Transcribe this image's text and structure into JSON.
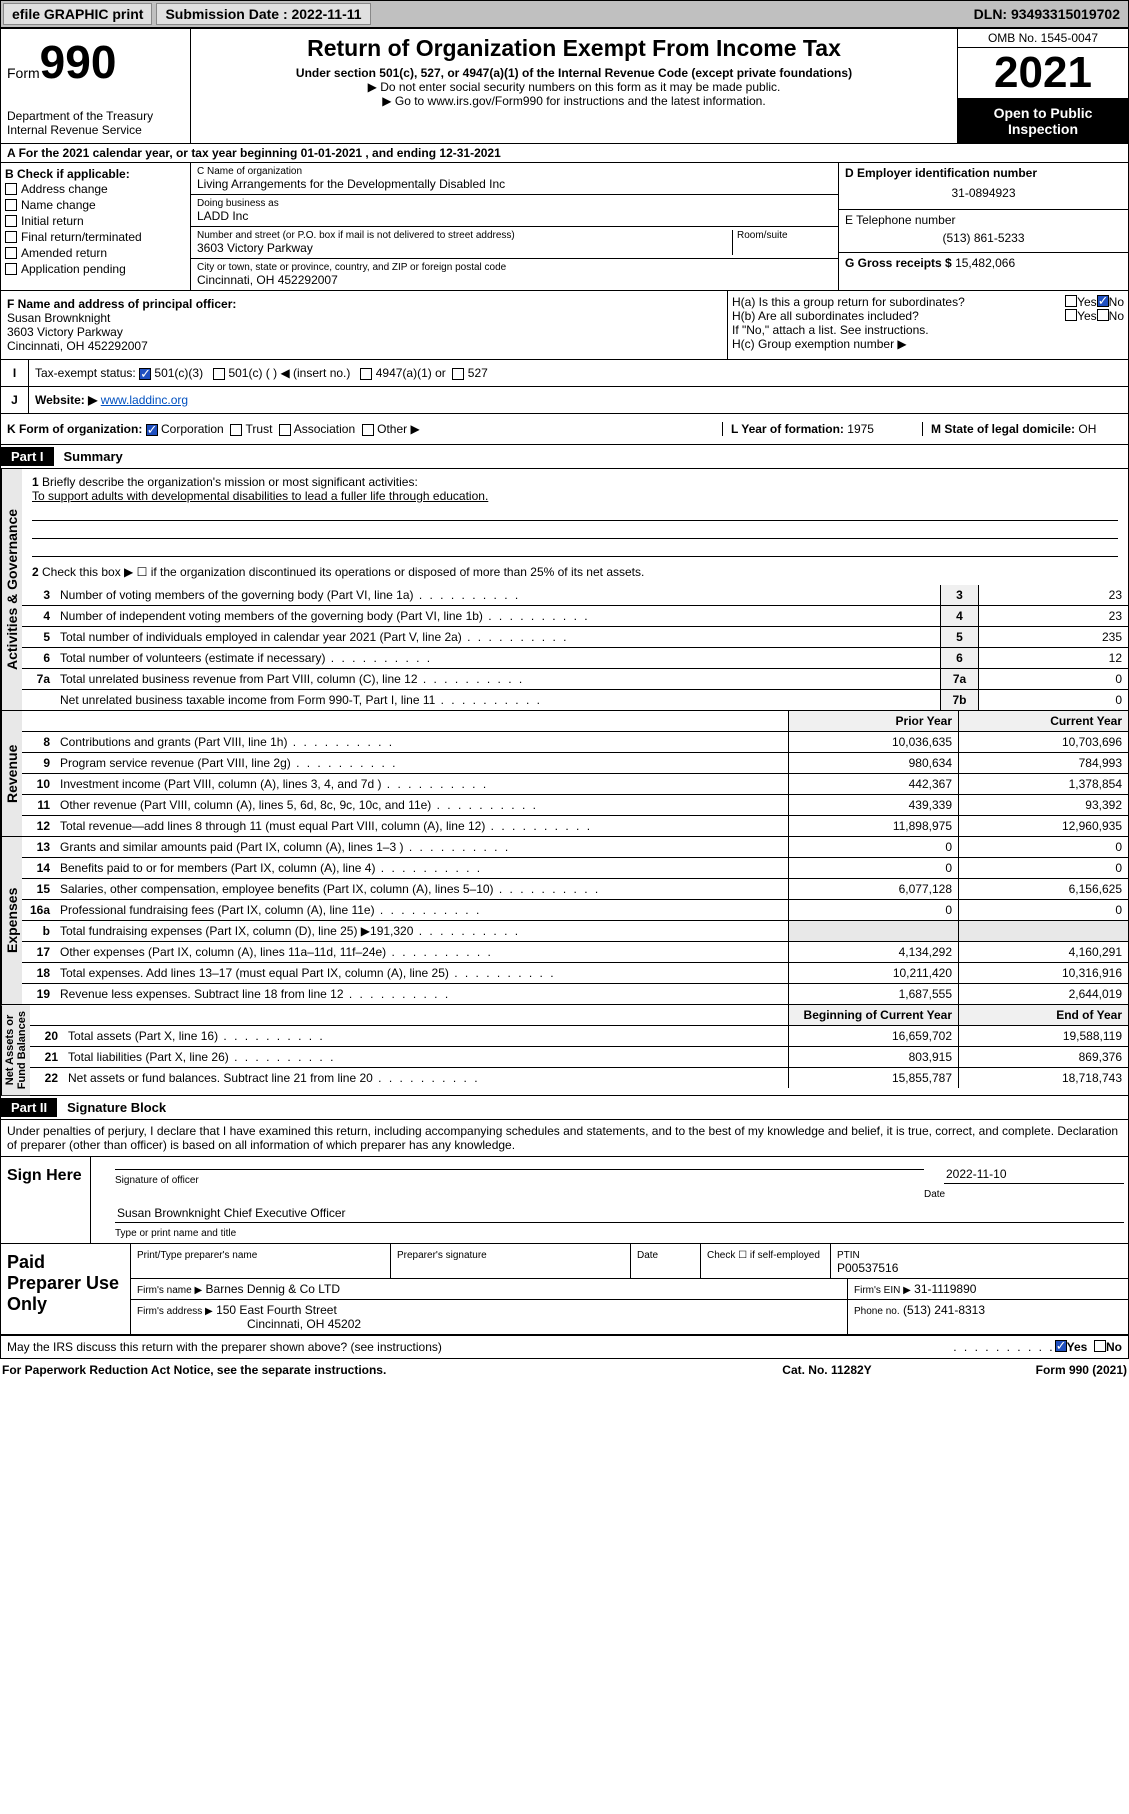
{
  "topbar": {
    "efile": "efile GRAPHIC print",
    "sub_label": "Submission Date : 2022-11-11",
    "dln": "DLN: 93493315019702"
  },
  "header": {
    "form_small": "Form",
    "form_big": "990",
    "dept": "Department of the Treasury\nInternal Revenue Service",
    "title": "Return of Organization Exempt From Income Tax",
    "sub1": "Under section 501(c), 527, or 4947(a)(1) of the Internal Revenue Code (except private foundations)",
    "sub2": "▶ Do not enter social security numbers on this form as it may be made public.",
    "sub3": "▶ Go to www.irs.gov/Form990 for instructions and the latest information.",
    "omb": "OMB No. 1545-0047",
    "year": "2021",
    "open": "Open to Public Inspection"
  },
  "a": {
    "text": "For the 2021 calendar year, or tax year beginning 01-01-2021   , and ending 12-31-2021"
  },
  "b": {
    "title": "B Check if applicable:",
    "items": [
      "Address change",
      "Name change",
      "Initial return",
      "Final return/terminated",
      "Amended return",
      "Application pending"
    ]
  },
  "c": {
    "name_label": "C Name of organization",
    "name": "Living Arrangements for the Developmentally Disabled Inc",
    "dba_label": "Doing business as",
    "dba": "LADD Inc",
    "addr_label": "Number and street (or P.O. box if mail is not delivered to street address)",
    "room": "Room/suite",
    "addr": "3603 Victory Parkway",
    "city_label": "City or town, state or province, country, and ZIP or foreign postal code",
    "city": "Cincinnati, OH  452292007"
  },
  "d": {
    "label": "D Employer identification number",
    "val": "31-0894923"
  },
  "e": {
    "label": "E Telephone number",
    "val": "(513) 861-5233"
  },
  "g": {
    "label": "G Gross receipts $",
    "val": "15,482,066"
  },
  "f": {
    "label": "F  Name and address of principal officer:",
    "name": "Susan Brownknight",
    "addr": "3603 Victory Parkway",
    "city": "Cincinnati, OH  452292007"
  },
  "h": {
    "a": "H(a)  Is this a group return for subordinates?",
    "a_no": "No",
    "a_yes": "Yes",
    "b": "H(b)  Are all subordinates included?",
    "b_note": "If \"No,\" attach a list. See instructions.",
    "c": "H(c)  Group exemption number ▶"
  },
  "i": {
    "label": "Tax-exempt status:",
    "opts": [
      "501(c)(3)",
      "501(c) (  ) ◀ (insert no.)",
      "4947(a)(1) or",
      "527"
    ]
  },
  "j": {
    "label": "Website: ▶",
    "val": "www.laddinc.org"
  },
  "k": {
    "label": "K Form of organization:",
    "opts": [
      "Corporation",
      "Trust",
      "Association",
      "Other ▶"
    ]
  },
  "l": {
    "label": "L Year of formation:",
    "val": "1975"
  },
  "m": {
    "label": "M State of legal domicile:",
    "val": "OH"
  },
  "part1": {
    "hdr": "Part I",
    "title": "Summary"
  },
  "summary": {
    "q1": "Briefly describe the organization's mission or most significant activities:",
    "mission": "To support adults with developmental disabilities to lead a fuller life through education.",
    "q2": "Check this box ▶ ☐  if the organization discontinued its operations or disposed of more than 25% of its net assets.",
    "lines": [
      {
        "n": "3",
        "d": "Number of voting members of the governing body (Part VI, line 1a)",
        "nb": "3",
        "v": "23"
      },
      {
        "n": "4",
        "d": "Number of independent voting members of the governing body (Part VI, line 1b)",
        "nb": "4",
        "v": "23"
      },
      {
        "n": "5",
        "d": "Total number of individuals employed in calendar year 2021 (Part V, line 2a)",
        "nb": "5",
        "v": "235"
      },
      {
        "n": "6",
        "d": "Total number of volunteers (estimate if necessary)",
        "nb": "6",
        "v": "12"
      },
      {
        "n": "7a",
        "d": "Total unrelated business revenue from Part VIII, column (C), line 12",
        "nb": "7a",
        "v": "0"
      },
      {
        "n": "",
        "d": "Net unrelated business taxable income from Form 990-T, Part I, line 11",
        "nb": "7b",
        "v": "0"
      }
    ]
  },
  "colhdrs": {
    "prior": "Prior Year",
    "current": "Current Year",
    "boy": "Beginning of Current Year",
    "eoy": "End of Year"
  },
  "revenue": [
    {
      "n": "8",
      "d": "Contributions and grants (Part VIII, line 1h)",
      "p": "10,036,635",
      "c": "10,703,696"
    },
    {
      "n": "9",
      "d": "Program service revenue (Part VIII, line 2g)",
      "p": "980,634",
      "c": "784,993"
    },
    {
      "n": "10",
      "d": "Investment income (Part VIII, column (A), lines 3, 4, and 7d )",
      "p": "442,367",
      "c": "1,378,854"
    },
    {
      "n": "11",
      "d": "Other revenue (Part VIII, column (A), lines 5, 6d, 8c, 9c, 10c, and 11e)",
      "p": "439,339",
      "c": "93,392"
    },
    {
      "n": "12",
      "d": "Total revenue—add lines 8 through 11 (must equal Part VIII, column (A), line 12)",
      "p": "11,898,975",
      "c": "12,960,935"
    }
  ],
  "expenses": [
    {
      "n": "13",
      "d": "Grants and similar amounts paid (Part IX, column (A), lines 1–3 )",
      "p": "0",
      "c": "0"
    },
    {
      "n": "14",
      "d": "Benefits paid to or for members (Part IX, column (A), line 4)",
      "p": "0",
      "c": "0"
    },
    {
      "n": "15",
      "d": "Salaries, other compensation, employee benefits (Part IX, column (A), lines 5–10)",
      "p": "6,077,128",
      "c": "6,156,625"
    },
    {
      "n": "16a",
      "d": "Professional fundraising fees (Part IX, column (A), line 11e)",
      "p": "0",
      "c": "0"
    },
    {
      "n": "b",
      "d": "Total fundraising expenses (Part IX, column (D), line 25) ▶191,320",
      "p": "",
      "c": "",
      "shade": true
    },
    {
      "n": "17",
      "d": "Other expenses (Part IX, column (A), lines 11a–11d, 11f–24e)",
      "p": "4,134,292",
      "c": "4,160,291"
    },
    {
      "n": "18",
      "d": "Total expenses. Add lines 13–17 (must equal Part IX, column (A), line 25)",
      "p": "10,211,420",
      "c": "10,316,916"
    },
    {
      "n": "19",
      "d": "Revenue less expenses. Subtract line 18 from line 12",
      "p": "1,687,555",
      "c": "2,644,019"
    }
  ],
  "netassets": [
    {
      "n": "20",
      "d": "Total assets (Part X, line 16)",
      "p": "16,659,702",
      "c": "19,588,119"
    },
    {
      "n": "21",
      "d": "Total liabilities (Part X, line 26)",
      "p": "803,915",
      "c": "869,376"
    },
    {
      "n": "22",
      "d": "Net assets or fund balances. Subtract line 21 from line 20",
      "p": "15,855,787",
      "c": "18,718,743"
    }
  ],
  "vtabs": {
    "ag": "Activities & Governance",
    "rev": "Revenue",
    "exp": "Expenses",
    "na": "Net Assets or\nFund Balances"
  },
  "part2": {
    "hdr": "Part II",
    "title": "Signature Block",
    "decl": "Under penalties of perjury, I declare that I have examined this return, including accompanying schedules and statements, and to the best of my knowledge and belief, it is true, correct, and complete. Declaration of preparer (other than officer) is based on all information of which preparer has any knowledge."
  },
  "sign": {
    "here": "Sign Here",
    "sig_officer": "Signature of officer",
    "date_lbl": "Date",
    "date": "2022-11-10",
    "name": "Susan Brownknight  Chief Executive Officer",
    "name_lbl": "Type or print name and title"
  },
  "paid": {
    "label": "Paid Preparer Use Only",
    "h1": "Print/Type preparer's name",
    "h2": "Preparer's signature",
    "h3": "Date",
    "h4": "Check ☐ if self-employed",
    "h5": "PTIN",
    "ptin": "P00537516",
    "firm_lbl": "Firm's name    ▶",
    "firm": "Barnes Dennig & Co LTD",
    "ein_lbl": "Firm's EIN ▶",
    "ein": "31-1119890",
    "addr_lbl": "Firm's address ▶",
    "addr": "150 East Fourth Street",
    "city": "Cincinnati, OH  45202",
    "phone_lbl": "Phone no.",
    "phone": "(513) 241-8313"
  },
  "may": {
    "q": "May the IRS discuss this return with the preparer shown above? (see instructions)",
    "yes": "Yes",
    "no": "No"
  },
  "footer": {
    "left": "For Paperwork Reduction Act Notice, see the separate instructions.",
    "mid": "Cat. No. 11282Y",
    "right": "Form 990 (2021)"
  }
}
